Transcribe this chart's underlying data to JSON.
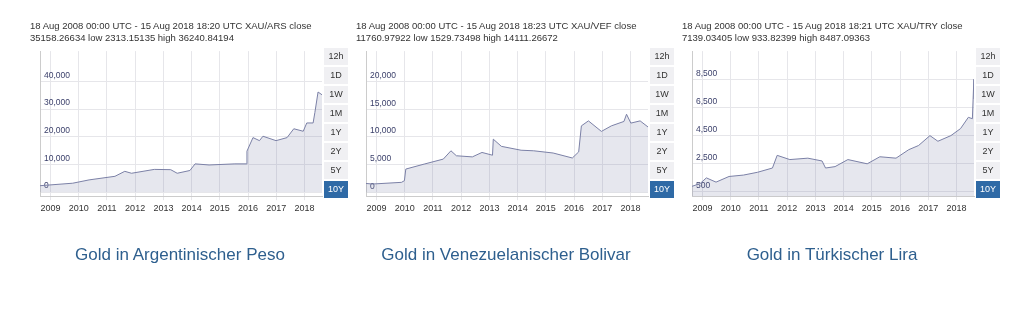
{
  "chart_data": [
    {
      "type": "area",
      "title": "Gold in Argentinischer Peso",
      "annotations": [
        "18 Aug 2008 00:00 UTC - 15 Aug 2018 18:20 UTC XAU/ARS close 35158.26634 low 2313.15135 high 36240.84194",
        "12h",
        "1D",
        "1W",
        "1M",
        "1Y",
        "2Y",
        "5Y",
        "10Y"
      ],
      "x": [
        "2008-08-18",
        "2009-10-15",
        "2010-05-15",
        "2011-04-15",
        "2011-08-20",
        "2011-11-15",
        "2012-09-05",
        "2013-04-05",
        "2013-06-28",
        "2013-12-10",
        "2014-02-15",
        "2014-08-15",
        "2015-07-15",
        "2015-12-10",
        "2015-12-18",
        "2016-03-05",
        "2016-05-28",
        "2016-07-12",
        "2016-12-28",
        "2017-05-20",
        "2017-08-15",
        "2017-12-15",
        "2018-01-30",
        "2018-04-22",
        "2018-05-15",
        "2018-06-25",
        "2018-08-15"
      ],
      "values": [
        2300,
        3200,
        4400,
        5700,
        7500,
        6800,
        8200,
        8100,
        6800,
        7800,
        10200,
        9800,
        10200,
        10200,
        14800,
        19700,
        18600,
        20200,
        18600,
        19700,
        22900,
        22000,
        25000,
        25000,
        28800,
        36200,
        35200
      ],
      "color": "#7b80a6",
      "marker": "none",
      "xlim": [
        "2008-08-18",
        "2018-08-15"
      ],
      "xticks": [
        {
          "value": "2009-01-01",
          "label": "2009"
        },
        {
          "value": "2010-01-01",
          "label": "2010"
        },
        {
          "value": "2011-01-01",
          "label": "2011"
        },
        {
          "value": "2012-01-01",
          "label": "2012"
        },
        {
          "value": "2013-01-01",
          "label": "2013"
        },
        {
          "value": "2014-01-01",
          "label": "2014"
        },
        {
          "value": "2015-01-01",
          "label": "2015"
        },
        {
          "value": "2016-01-01",
          "label": "2016"
        },
        {
          "value": "2017-01-01",
          "label": "2017"
        },
        {
          "value": "2018-01-01",
          "label": "2018"
        }
      ],
      "ylim": [
        -1500,
        51000
      ],
      "yticks": [
        {
          "value": 0,
          "label": "0"
        },
        {
          "value": 10000,
          "label": "10,000"
        },
        {
          "value": 20000,
          "label": "20,000"
        },
        {
          "value": 30000,
          "label": "30,000"
        },
        {
          "value": 40000,
          "label": "40,000"
        }
      ],
      "grid": true
    },
    {
      "type": "area",
      "title": "Gold in Venezuelanischer Bolivar",
      "annotations": [
        "18 Aug 2008 00:00 UTC - 15 Aug 2018 18:23 UTC XAU/VEF close 11760.97922 low 1529.73498 high 14111.26672",
        "12h",
        "1D",
        "1W",
        "1M",
        "1Y",
        "2Y",
        "5Y",
        "10Y"
      ],
      "x": [
        "2008-08-18",
        "2008-11-10",
        "2009-11-20",
        "2009-12-28",
        "2010-01-15",
        "2010-09-10",
        "2011-05-15",
        "2011-08-22",
        "2011-11-01",
        "2012-05-25",
        "2012-09-27",
        "2013-02-10",
        "2013-02-20",
        "2013-06-05",
        "2014-02-15",
        "2014-07-28",
        "2015-04-05",
        "2015-12-10",
        "2016-03-01",
        "2016-04-05",
        "2016-07-05",
        "2016-12-20",
        "2017-04-28",
        "2017-10-08",
        "2017-11-10",
        "2018-01-05",
        "2018-05-05",
        "2018-08-15"
      ],
      "values": [
        1600,
        1500,
        1800,
        2100,
        4200,
        5100,
        6000,
        7500,
        6600,
        6400,
        7200,
        6700,
        9600,
        8300,
        7600,
        7500,
        7100,
        6200,
        7300,
        12000,
        12900,
        11000,
        12000,
        12800,
        14100,
        12500,
        12900,
        11800
      ],
      "color": "#7b80a6",
      "marker": "none",
      "xlim": [
        "2008-08-18",
        "2018-08-15"
      ],
      "xticks": [
        {
          "value": "2009-01-01",
          "label": "2009"
        },
        {
          "value": "2010-01-01",
          "label": "2010"
        },
        {
          "value": "2011-01-01",
          "label": "2011"
        },
        {
          "value": "2012-01-01",
          "label": "2012"
        },
        {
          "value": "2013-01-01",
          "label": "2013"
        },
        {
          "value": "2014-01-01",
          "label": "2014"
        },
        {
          "value": "2015-01-01",
          "label": "2015"
        },
        {
          "value": "2016-01-01",
          "label": "2016"
        },
        {
          "value": "2017-01-01",
          "label": "2017"
        },
        {
          "value": "2018-01-01",
          "label": "2018"
        }
      ],
      "ylim": [
        -700,
        25500
      ],
      "yticks": [
        {
          "value": 0,
          "label": "0"
        },
        {
          "value": 5000,
          "label": "5,000"
        },
        {
          "value": 10000,
          "label": "10,000"
        },
        {
          "value": 15000,
          "label": "15,000"
        },
        {
          "value": 20000,
          "label": "20,000"
        }
      ],
      "grid": true
    },
    {
      "type": "area",
      "title": "Gold in Türkischer Lira",
      "annotations": [
        "18 Aug 2008 00:00 UTC - 15 Aug 2018 18:21 UTC XAU/TRY close 7139.03405 low 933.82399 high 8487.09363",
        "12h",
        "1D",
        "1W",
        "1M",
        "1Y",
        "2Y",
        "5Y",
        "10Y"
      ],
      "x": [
        "2008-08-18",
        "2008-12-01",
        "2009-02-20",
        "2009-06-25",
        "2009-12-10",
        "2010-06-15",
        "2010-12-15",
        "2011-06-25",
        "2011-08-25",
        "2012-02-05",
        "2012-09-25",
        "2013-03-28",
        "2013-05-12",
        "2013-09-12",
        "2014-02-25",
        "2014-11-02",
        "2015-04-15",
        "2015-11-10",
        "2016-04-22",
        "2016-08-28",
        "2017-01-22",
        "2017-05-05",
        "2017-10-20",
        "2018-02-22",
        "2018-06-03",
        "2018-07-25",
        "2018-08-13",
        "2018-08-15"
      ],
      "values": [
        900,
        1100,
        1500,
        1200,
        1600,
        1700,
        1900,
        2200,
        3100,
        2800,
        2900,
        2700,
        2200,
        2300,
        2800,
        2500,
        3000,
        2900,
        3500,
        3800,
        4500,
        4100,
        4500,
        5000,
        5800,
        5700,
        8500,
        7100
      ],
      "color": "#7b80a6",
      "marker": "none",
      "xlim": [
        "2008-08-18",
        "2018-08-15"
      ],
      "xticks": [
        {
          "value": "2009-01-01",
          "label": "2009"
        },
        {
          "value": "2010-01-01",
          "label": "2010"
        },
        {
          "value": "2011-01-01",
          "label": "2011"
        },
        {
          "value": "2012-01-01",
          "label": "2012"
        },
        {
          "value": "2013-01-01",
          "label": "2013"
        },
        {
          "value": "2014-01-01",
          "label": "2014"
        },
        {
          "value": "2015-01-01",
          "label": "2015"
        },
        {
          "value": "2016-01-01",
          "label": "2016"
        },
        {
          "value": "2017-01-01",
          "label": "2017"
        },
        {
          "value": "2018-01-01",
          "label": "2018"
        }
      ],
      "ylim": [
        200,
        10500
      ],
      "yticks": [
        {
          "value": 500,
          "label": "500"
        },
        {
          "value": 2500,
          "label": "2,500"
        },
        {
          "value": 4500,
          "label": "4,500"
        },
        {
          "value": 6500,
          "label": "6,500"
        },
        {
          "value": 8500,
          "label": "8,500"
        }
      ],
      "grid": true
    }
  ]
}
